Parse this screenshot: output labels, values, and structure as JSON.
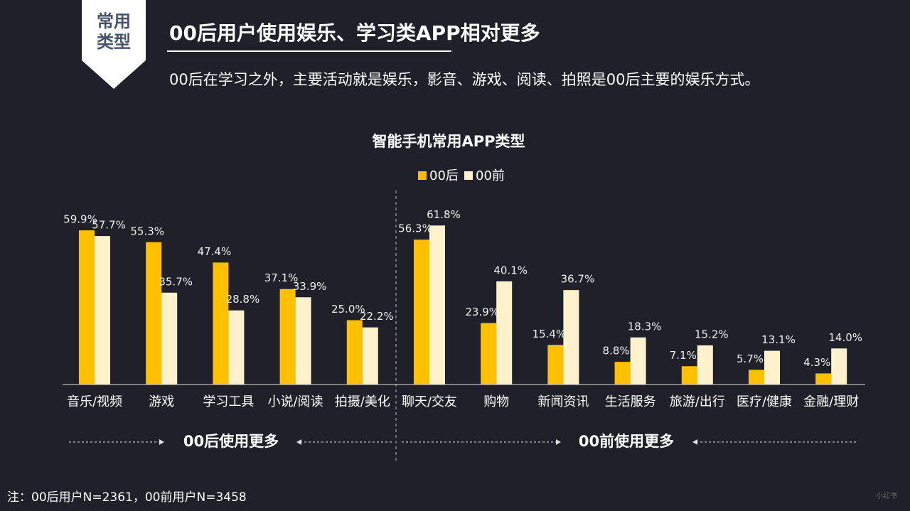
{
  "slide": {
    "badge": [
      "常用",
      "类型"
    ],
    "heading": "00后用户使用娱乐、学习类APP相对更多",
    "subtitle": "00后在学习之外，主要活动就是娱乐，影音、游戏、阅读、拍照是00后主要的娱乐方式。",
    "note": "注：00后用户N=2361，00前用户N=3458",
    "watermark": "小红书"
  },
  "chart_data": {
    "type": "bar",
    "title": "智能手机常用APP类型",
    "categories": [
      "音乐/视频",
      "游戏",
      "学习工具",
      "小说/阅读",
      "拍摄/美化",
      "聊天/交友",
      "购物",
      "新闻资讯",
      "生活服务",
      "旅游/出行",
      "医疗/健康",
      "金融/理财"
    ],
    "series": [
      {
        "name": "00后",
        "color": "#ffc000",
        "values": [
          59.9,
          55.3,
          47.4,
          37.1,
          25.0,
          56.3,
          23.9,
          15.4,
          8.8,
          7.1,
          5.7,
          4.3
        ],
        "value_labels": [
          "59.9%",
          "55.3%",
          "47.4%",
          "37.1%",
          "25.0%",
          "56.3%",
          "23.9%",
          "15.4%",
          "8.8%",
          "7.1%",
          "5.7%",
          "4.3%"
        ]
      },
      {
        "name": "00前",
        "color": "#fff2cc",
        "values": [
          57.7,
          35.7,
          28.8,
          33.9,
          22.2,
          61.8,
          40.1,
          36.7,
          18.3,
          15.2,
          13.1,
          14.0
        ],
        "value_labels": [
          "57.7%",
          "35.7%",
          "28.8%",
          "33.9%",
          "22.2%",
          "61.8%",
          "40.1%",
          "36.7%",
          "18.3%",
          "15.2%",
          "13.1%",
          "14.0%"
        ]
      }
    ],
    "annotations": [
      "00后使用更多",
      "00前使用更多"
    ]
  }
}
